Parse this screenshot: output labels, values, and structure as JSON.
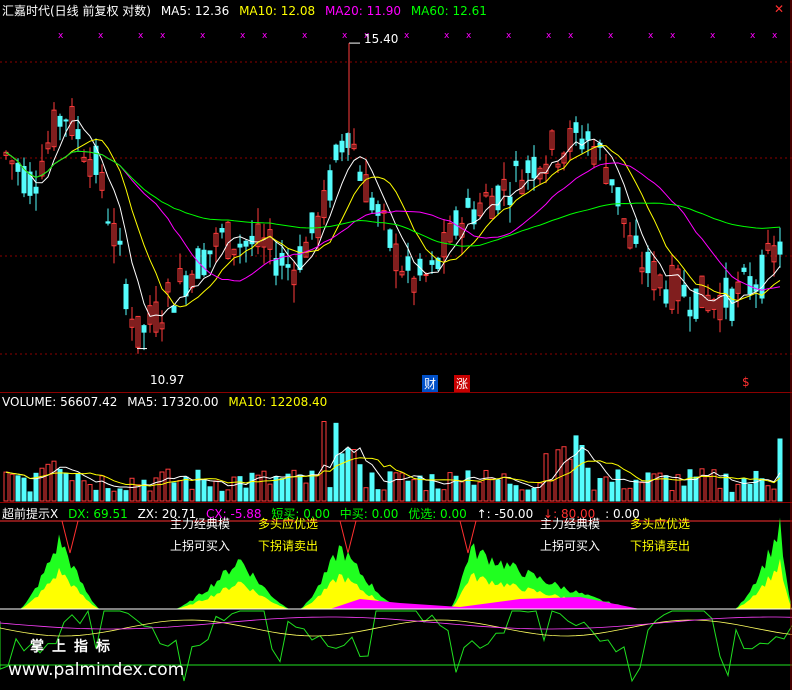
{
  "price_header": {
    "title": "汇嘉时代(日线 前复权 对数)",
    "ma5": "MA5: 12.36",
    "ma10": "MA10: 12.08",
    "ma20": "MA20: 11.90",
    "ma60": "MA60: 12.61"
  },
  "price_annotations": {
    "high_label": "15.40",
    "low_label": "10.97",
    "cai_badge": "财",
    "zhang_badge": "涨",
    "s_badge": "$"
  },
  "volume_header": {
    "volume": "VOLUME: 56607.42",
    "ma5": "MA5: 17320.00",
    "ma10": "MA10: 12208.40"
  },
  "indicator_header": {
    "name": "超前提示X",
    "dx": "DX: 69.51",
    "zx": "ZX: 20.71",
    "cx": "CX: -5.88",
    "short_buy": "短买: 0.00",
    "mid_buy": "中买: 0.00",
    "pick": "优选: 0.00",
    "up": "↑: -50.00",
    "down": "↓: 80.00",
    "extra": ": 0.00"
  },
  "signals": {
    "main_classic": "主力经典模",
    "multi_empty_pick": "多头应优选",
    "turn_up_buy": "上拐可买入",
    "turn_down_sell": "下拐请卖出"
  },
  "watermark": {
    "brand": "掌上指标",
    "url": "www.palmindex.com"
  },
  "colors": {
    "up_candle": "#ff3c3c",
    "down_candle": "#54fcfc",
    "ma5": "#ffffff",
    "ma10": "#ffff00",
    "ma20": "#ff00ff",
    "ma60": "#00ff00",
    "frame_red": "#8b0000"
  },
  "chart_data": [
    {
      "type": "candlestick",
      "title": "汇嘉时代(日线 前复权 对数)",
      "ylim": [
        10.5,
        15.8
      ],
      "high_point": 15.4,
      "low_point": 10.97,
      "series": [
        {
          "name": "MA5",
          "last": 12.36
        },
        {
          "name": "MA10",
          "last": 12.08
        },
        {
          "name": "MA20",
          "last": 11.9
        },
        {
          "name": "MA60",
          "last": 12.61
        }
      ]
    },
    {
      "type": "bar",
      "title": "VOLUME",
      "series": [
        {
          "name": "VOLUME",
          "last": 56607.42
        },
        {
          "name": "MA5",
          "last": 17320.0
        },
        {
          "name": "MA10",
          "last": 12208.4
        }
      ]
    },
    {
      "type": "area",
      "title": "超前提示X",
      "series": [
        {
          "name": "DX",
          "last": 69.51
        },
        {
          "name": "ZX",
          "last": 20.71
        },
        {
          "name": "CX",
          "last": -5.88
        }
      ]
    }
  ]
}
